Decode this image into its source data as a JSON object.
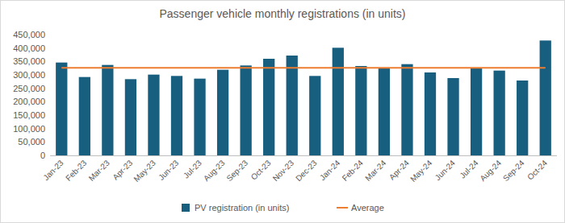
{
  "chart_data": {
    "type": "bar",
    "title": "Passenger vehicle monthly registrations (in units)",
    "categories": [
      "Jan-23",
      "Feb-23",
      "Mar-23",
      "Apr-23",
      "May-23",
      "Jun-23",
      "Jul-23",
      "Aug-23",
      "Sep-23",
      "Oct-23",
      "Nov-23",
      "Dec-23",
      "Jan-24",
      "Feb-24",
      "Mar-24",
      "Apr-24",
      "May-24",
      "Jun-24",
      "Jul-24",
      "Aug-24",
      "Sep-24",
      "Oct-24"
    ],
    "series": [
      {
        "name": "PV registration (in units)",
        "type": "bar",
        "color": "#175e7f",
        "values": [
          346000,
          292000,
          337000,
          284000,
          301000,
          296000,
          286000,
          319000,
          335000,
          360000,
          372000,
          296000,
          401000,
          333000,
          325000,
          340000,
          309000,
          288000,
          327000,
          316000,
          279000,
          428000
        ]
      },
      {
        "name": "Average",
        "type": "line",
        "color": "#ed7d31",
        "values": [
          326000,
          326000,
          326000,
          326000,
          326000,
          326000,
          326000,
          326000,
          326000,
          326000,
          326000,
          326000,
          326000,
          326000,
          326000,
          326000,
          326000,
          326000,
          326000,
          326000,
          326000,
          326000
        ]
      }
    ],
    "ylim": [
      0,
      450000
    ],
    "yticks": [
      0,
      {
        "value": 50000,
        "label": "50,000"
      },
      {
        "value": 100000,
        "label": "100,000"
      },
      {
        "value": 150000,
        "label": "150,000"
      },
      {
        "value": 200000,
        "label": "200,000"
      },
      {
        "value": 250000,
        "label": "250,000"
      },
      {
        "value": 300000,
        "label": "300,000"
      },
      {
        "value": 350000,
        "label": "350,000"
      },
      {
        "value": 400000,
        "label": "400,000"
      },
      {
        "value": 450000,
        "label": "450,000"
      }
    ],
    "grid": false,
    "legend": "bottom"
  }
}
